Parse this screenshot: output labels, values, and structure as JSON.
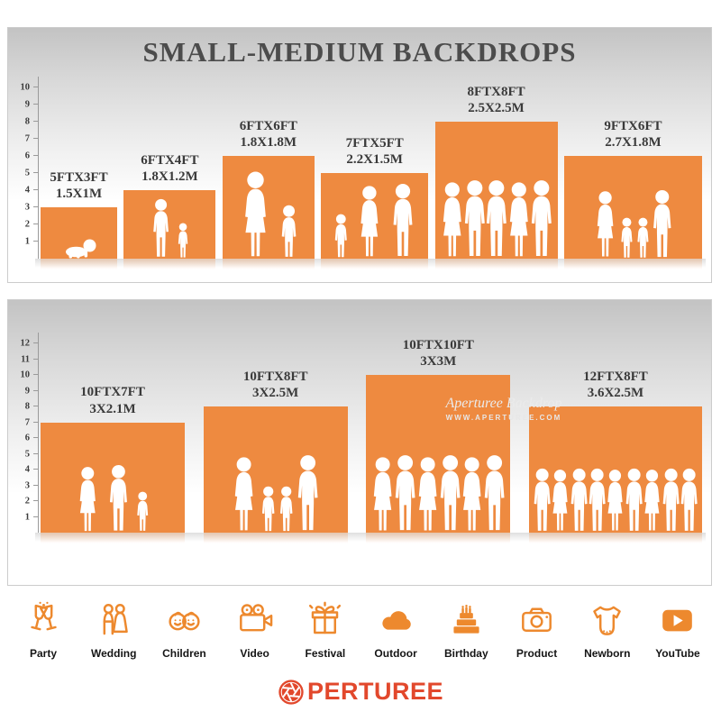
{
  "page": {
    "title": "SMALL-MEDIUM BACKDROPS"
  },
  "colors": {
    "backdrop_orange": "#EE8A40",
    "icon_orange": "#ED892E",
    "logo_red": "#E2482C",
    "title_gray": "#4C4C4C"
  },
  "chart_data": [
    {
      "type": "bar",
      "title": "SMALL-MEDIUM BACKDROPS",
      "ylim": [
        0,
        10
      ],
      "axis_ticks": [
        1,
        2,
        3,
        4,
        5,
        6,
        7,
        8,
        9,
        10
      ],
      "bars": [
        {
          "size_ft": "5FTX3FT",
          "size_m": "1.5X1M",
          "width_ft": 5,
          "height_ft": 3,
          "figures": [
            "baby"
          ]
        },
        {
          "size_ft": "6FTX4FT",
          "size_m": "1.8X1.2M",
          "width_ft": 6,
          "height_ft": 4,
          "figures": [
            "adult",
            "child"
          ]
        },
        {
          "size_ft": "6FTX6FT",
          "size_m": "1.8X1.8M",
          "width_ft": 6,
          "height_ft": 6,
          "figures": [
            "adultf",
            "child"
          ]
        },
        {
          "size_ft": "7FTX5FT",
          "size_m": "2.2X1.5M",
          "width_ft": 7,
          "height_ft": 5,
          "figures": [
            "child",
            "adultf",
            "adult"
          ]
        },
        {
          "size_ft": "8FTX8FT",
          "size_m": "2.5X2.5M",
          "width_ft": 8,
          "height_ft": 8,
          "figures": [
            "adultf",
            "adult",
            "adult",
            "adultf",
            "adult"
          ]
        },
        {
          "size_ft": "9FTX6FT",
          "size_m": "2.7X1.8M",
          "width_ft": 9,
          "height_ft": 6,
          "figures": [
            "adultf",
            "child",
            "child",
            "adult"
          ]
        }
      ]
    },
    {
      "type": "bar",
      "title": "",
      "ylim": [
        0,
        12
      ],
      "axis_ticks": [
        1,
        2,
        3,
        4,
        5,
        6,
        7,
        8,
        9,
        10,
        11,
        12
      ],
      "bars": [
        {
          "size_ft": "10FTX7FT",
          "size_m": "3X2.1M",
          "width_ft": 10,
          "height_ft": 7,
          "figures": [
            "adultf",
            "adult",
            "child"
          ]
        },
        {
          "size_ft": "10FTX8FT",
          "size_m": "3X2.5M",
          "width_ft": 10,
          "height_ft": 8,
          "figures": [
            "adultf",
            "child",
            "child",
            "adult"
          ]
        },
        {
          "size_ft": "10FTX10FT",
          "size_m": "3X3M",
          "width_ft": 10,
          "height_ft": 10,
          "figures": [
            "adultf",
            "adult",
            "adultf",
            "adult",
            "adultf",
            "adult"
          ]
        },
        {
          "size_ft": "12FTX8FT",
          "size_m": "3.6X2.5M",
          "width_ft": 12,
          "height_ft": 8,
          "figures": [
            "adult",
            "adultf",
            "adult",
            "adult",
            "adultf",
            "adult",
            "adultf",
            "adult",
            "adult"
          ]
        }
      ],
      "watermark": {
        "line1": "Aperturee Backdrop",
        "line2": "WWW.APERTUREE.COM"
      }
    }
  ],
  "categories": [
    {
      "label": "Party",
      "icon": "party-icon"
    },
    {
      "label": "Wedding",
      "icon": "wedding-icon"
    },
    {
      "label": "Children",
      "icon": "children-icon"
    },
    {
      "label": "Video",
      "icon": "video-icon"
    },
    {
      "label": "Festival",
      "icon": "festival-icon"
    },
    {
      "label": "Outdoor",
      "icon": "outdoor-icon"
    },
    {
      "label": "Birthday",
      "icon": "birthday-icon"
    },
    {
      "label": "Product",
      "icon": "product-icon"
    },
    {
      "label": "Newborn",
      "icon": "newborn-icon"
    },
    {
      "label": "YouTube",
      "icon": "youtube-icon"
    }
  ],
  "logo": {
    "brand": "APERTUREE",
    "text": "PERTUREE"
  }
}
